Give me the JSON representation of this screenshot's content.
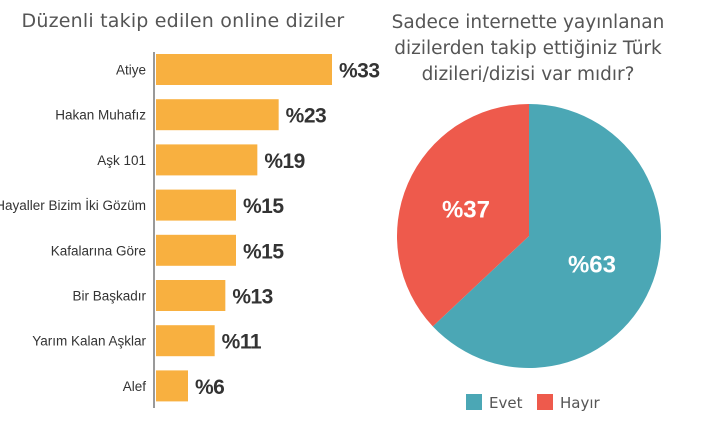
{
  "chart_data": [
    {
      "type": "bar",
      "orientation": "horizontal",
      "title": "Düzenli takip edilen online diziler",
      "categories": [
        "Atiye",
        "Hakan Muhafız",
        "Aşk 101",
        "Hayaller Bizim İki Gözüm",
        "Kafalarına Göre",
        "Bir Başkadır",
        "Yarım Kalan Aşklar",
        "Alef"
      ],
      "values": [
        33,
        23,
        19,
        15,
        15,
        13,
        11,
        6
      ],
      "value_labels": [
        "%33",
        "%23",
        "%19",
        "%15",
        "%15",
        "%13",
        "%11",
        "%6"
      ],
      "xlim": [
        0,
        33
      ],
      "grid": false,
      "color": "#F8B040"
    },
    {
      "type": "pie",
      "title": "Sadece internette yayınlanan dizilerden takip ettiğiniz Türk dizileri/dizisi var mıdır?",
      "title_lines": [
        "Sadece internette yayınlanan",
        "dizilerden takip ettiğiniz Türk",
        "dizileri/dizisi var mıdır?"
      ],
      "categories": [
        "Evet",
        "Hayır"
      ],
      "values": [
        63,
        37
      ],
      "value_labels": [
        "%63",
        "%37"
      ],
      "colors": [
        "#4BA7B5",
        "#EE5A4C"
      ],
      "legend_position": "bottom"
    }
  ]
}
